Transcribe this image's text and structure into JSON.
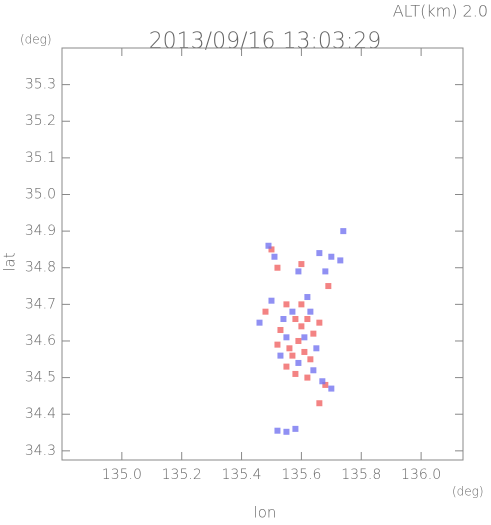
{
  "chart_data": {
    "type": "scatter",
    "title": "2013/09/16 13:03:29",
    "subtitle": "ALT(km) 2.0",
    "x_label": "lon",
    "y_label": "lat",
    "x_unit": "(deg)",
    "y_unit": "(deg)",
    "xlim": [
      134.8,
      136.14
    ],
    "ylim": [
      34.275,
      35.4
    ],
    "xticks": [
      {
        "value": 135.0,
        "label": "135.0"
      },
      135.2,
      135.4,
      135.6,
      135.8,
      {
        "value": 136.0,
        "label": "136.0"
      }
    ],
    "yticks": [
      34.3,
      34.4,
      34.5,
      34.6,
      34.7,
      34.8,
      34.9,
      {
        "value": 35.0,
        "label": "35.0"
      },
      35.1,
      35.2,
      35.3
    ],
    "series": [
      {
        "color": "#f06464",
        "x": [
          135.5,
          135.52,
          135.6,
          135.69,
          135.48,
          135.55,
          135.58,
          135.6,
          135.62,
          135.64,
          135.53,
          135.56,
          135.59,
          135.61,
          135.63,
          135.55,
          135.58,
          135.62,
          135.66,
          135.57,
          135.68,
          135.66,
          135.6,
          135.52
        ],
        "values": [
          34.85,
          34.8,
          34.81,
          34.75,
          34.68,
          34.7,
          34.66,
          34.64,
          34.66,
          34.62,
          34.63,
          34.58,
          34.6,
          34.57,
          34.55,
          34.53,
          34.51,
          34.5,
          34.65,
          34.56,
          34.48,
          34.43,
          34.7,
          34.59
        ]
      },
      {
        "color": "#7474f0",
        "x": [
          135.49,
          135.51,
          135.59,
          135.66,
          135.7,
          135.73,
          135.68,
          135.5,
          135.54,
          135.57,
          135.61,
          135.65,
          135.63,
          135.55,
          135.59,
          135.53,
          135.64,
          135.7,
          135.67,
          135.52,
          135.55,
          135.58,
          135.46,
          135.62,
          135.74
        ],
        "values": [
          34.86,
          34.83,
          34.79,
          34.84,
          34.83,
          34.82,
          34.79,
          34.71,
          34.66,
          34.68,
          34.61,
          34.58,
          34.68,
          34.61,
          34.54,
          34.56,
          34.52,
          34.47,
          34.49,
          34.355,
          34.352,
          34.36,
          34.65,
          34.72,
          34.9
        ]
      }
    ]
  }
}
